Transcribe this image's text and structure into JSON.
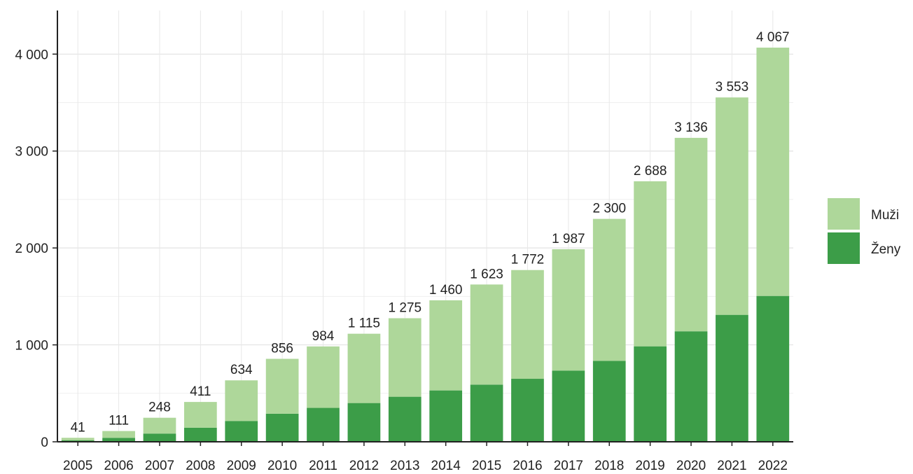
{
  "chart_data": {
    "type": "bar",
    "stacked": true,
    "categories": [
      "2005",
      "2006",
      "2007",
      "2008",
      "2009",
      "2010",
      "2011",
      "2012",
      "2013",
      "2014",
      "2015",
      "2016",
      "2017",
      "2018",
      "2019",
      "2020",
      "2021",
      "2022"
    ],
    "series": [
      {
        "name": "Ženy",
        "color": "#3c9d48",
        "values": [
          15,
          40,
          85,
          145,
          215,
          290,
          350,
          400,
          465,
          530,
          590,
          650,
          735,
          835,
          985,
          1140,
          1310,
          1505
        ]
      },
      {
        "name": "Muži",
        "color": "#aed79a",
        "values": [
          26,
          71,
          163,
          266,
          419,
          566,
          634,
          715,
          810,
          930,
          1033,
          1122,
          1252,
          1465,
          1703,
          1996,
          2243,
          2562
        ]
      }
    ],
    "totals": [
      41,
      111,
      248,
      411,
      634,
      856,
      984,
      1115,
      1275,
      1460,
      1623,
      1772,
      1987,
      2300,
      2688,
      3136,
      3553,
      4067
    ],
    "total_labels": [
      "41",
      "111",
      "248",
      "411",
      "634",
      "856",
      "984",
      "1 115",
      "1 275",
      "1 460",
      "1 623",
      "1 772",
      "1 987",
      "2 300",
      "2 688",
      "3 136",
      "3 553",
      "4 067"
    ],
    "ylim": [
      0,
      4450
    ],
    "yticks": [
      0,
      1000,
      2000,
      3000,
      4000
    ],
    "ytick_labels": [
      "0",
      "1 000",
      "2 000",
      "3 000",
      "4 000"
    ],
    "title": "",
    "xlabel": "",
    "ylabel": "",
    "grid": true,
    "legend": {
      "position": "right",
      "order": [
        "Muži",
        "Ženy"
      ]
    }
  }
}
